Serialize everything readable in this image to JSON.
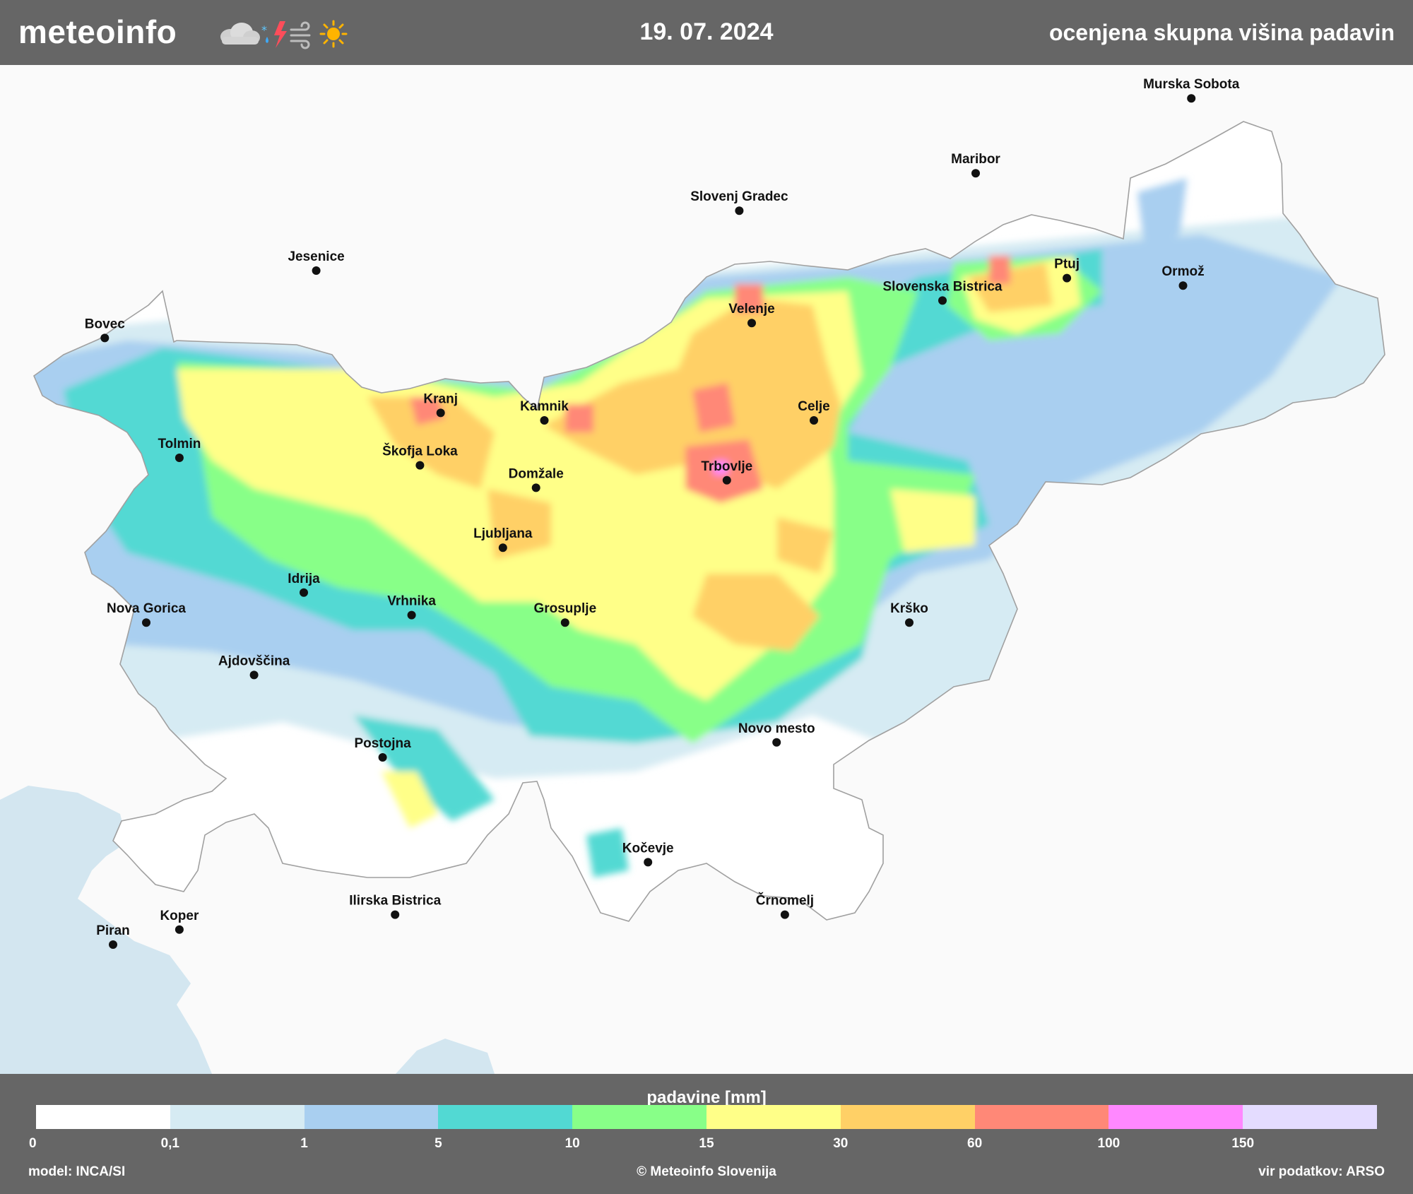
{
  "header": {
    "logo": "meteoinfo",
    "date": "19. 07. 2024",
    "title": "ocenjena skupna višina padavin"
  },
  "icons": [
    "cloud-icon",
    "snow-rain-icon",
    "lightning-icon",
    "wind-icon",
    "sun-icon"
  ],
  "cities": [
    {
      "name": "Murska Sobota",
      "lon": 16.17,
      "lat": 46.66
    },
    {
      "name": "Maribor",
      "lon": 15.65,
      "lat": 46.56
    },
    {
      "name": "Slovenj Gradec",
      "lon": 15.08,
      "lat": 46.51
    },
    {
      "name": "Jesenice",
      "lon": 14.06,
      "lat": 46.43
    },
    {
      "name": "Ptuj",
      "lon": 15.87,
      "lat": 46.42
    },
    {
      "name": "Ormož",
      "lon": 16.15,
      "lat": 46.41
    },
    {
      "name": "Bovec",
      "lon": 13.55,
      "lat": 46.34
    },
    {
      "name": "Velenje",
      "lon": 15.11,
      "lat": 46.36
    },
    {
      "name": "Slovenska Bistrica",
      "lon": 15.57,
      "lat": 46.39
    },
    {
      "name": "Kranj",
      "lon": 14.36,
      "lat": 46.24
    },
    {
      "name": "Kamnik",
      "lon": 14.61,
      "lat": 46.23
    },
    {
      "name": "Celje",
      "lon": 15.26,
      "lat": 46.23
    },
    {
      "name": "Tolmin",
      "lon": 13.73,
      "lat": 46.18
    },
    {
      "name": "Škofja Loka",
      "lon": 14.31,
      "lat": 46.17
    },
    {
      "name": "Domžale",
      "lon": 14.59,
      "lat": 46.14
    },
    {
      "name": "Trbovlje",
      "lon": 15.05,
      "lat": 46.15
    },
    {
      "name": "Ljubljana",
      "lon": 14.51,
      "lat": 46.06
    },
    {
      "name": "Idrija",
      "lon": 14.03,
      "lat": 46.0
    },
    {
      "name": "Nova Gorica",
      "lon": 13.65,
      "lat": 45.96
    },
    {
      "name": "Vrhnika",
      "lon": 14.29,
      "lat": 45.97
    },
    {
      "name": "Grosuplje",
      "lon": 14.66,
      "lat": 45.96
    },
    {
      "name": "Krško",
      "lon": 15.49,
      "lat": 45.96
    },
    {
      "name": "Ajdovščina",
      "lon": 13.91,
      "lat": 45.89
    },
    {
      "name": "Novo mesto",
      "lon": 15.17,
      "lat": 45.8
    },
    {
      "name": "Postojna",
      "lon": 14.22,
      "lat": 45.78
    },
    {
      "name": "Kočevje",
      "lon": 14.86,
      "lat": 45.64
    },
    {
      "name": "Črnomelj",
      "lon": 15.19,
      "lat": 45.57
    },
    {
      "name": "Ilirska Bistrica",
      "lon": 14.25,
      "lat": 45.57
    },
    {
      "name": "Koper",
      "lon": 13.73,
      "lat": 45.55
    },
    {
      "name": "Piran",
      "lon": 13.57,
      "lat": 45.53
    }
  ],
  "legend": {
    "title": "padavine [mm]",
    "ticks": [
      "0",
      "0,1",
      "1",
      "5",
      "10",
      "15",
      "30",
      "60",
      "100",
      "150"
    ],
    "colors": [
      "#ffffff",
      "#d6ebf3",
      "#a9cff0",
      "#52d9d3",
      "#88ff88",
      "#ffff88",
      "#ffd066",
      "#ff8877",
      "#ff88ff",
      "#e4dcff"
    ]
  },
  "footer": {
    "model": "model: INCA/SI",
    "copyright": "© Meteoinfo Slovenija",
    "source": "vir podatkov: ARSO"
  }
}
